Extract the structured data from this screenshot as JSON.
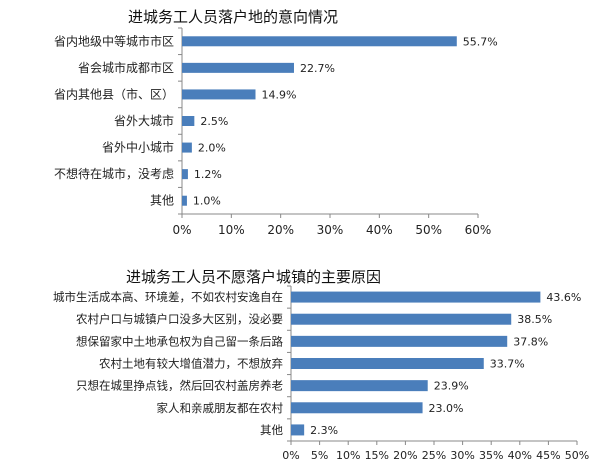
{
  "chart_data": [
    {
      "type": "bar",
      "orientation": "horizontal",
      "title": "进城务工人员落户地的意向情况",
      "categories": [
        "省内地级中等城市市区",
        "省会城市成都市区",
        "省内其他县（市、区）",
        "省外大城市",
        "省外中小城市",
        "不想待在城市，没考虑",
        "其他"
      ],
      "values": [
        55.7,
        22.7,
        14.9,
        2.5,
        2.0,
        1.2,
        1.0
      ],
      "value_labels": [
        "55.7%",
        "22.7%",
        "14.9%",
        "2.5%",
        "2.0%",
        "1.2%",
        "1.0%"
      ],
      "xlim": [
        0,
        60
      ],
      "xticks": [
        0,
        10,
        20,
        30,
        40,
        50,
        60
      ],
      "xtick_labels": [
        "0%",
        "10%",
        "20%",
        "30%",
        "40%",
        "50%",
        "60%"
      ],
      "grid": false,
      "bar_color": "#4a7ebb"
    },
    {
      "type": "bar",
      "orientation": "horizontal",
      "title": "进城务工人员不愿落户城镇的主要原因",
      "categories": [
        "城市生活成本高、环境差，不如农村安逸自在",
        "农村户口与城镇户口没多大区别，没必要",
        "想保留家中土地承包权为自己留一条后路",
        "农村土地有较大增值潜力，不想放弃",
        "只想在城里挣点钱，然后回农村盖房养老",
        "家人和亲戚朋友都在农村",
        "其他"
      ],
      "values": [
        43.6,
        38.5,
        37.8,
        33.7,
        23.9,
        23.0,
        2.3
      ],
      "value_labels": [
        "43.6%",
        "38.5%",
        "37.8%",
        "33.7%",
        "23.9%",
        "23.0%",
        "2.3%"
      ],
      "xlim": [
        0,
        50
      ],
      "xticks": [
        0,
        5,
        10,
        15,
        20,
        25,
        30,
        35,
        40,
        45,
        50
      ],
      "xtick_labels": [
        "0%",
        "5%",
        "10%",
        "15%",
        "20%",
        "25%",
        "30%",
        "35%",
        "40%",
        "45%",
        "50%"
      ],
      "grid": false,
      "bar_color": "#4a7ebb"
    }
  ]
}
